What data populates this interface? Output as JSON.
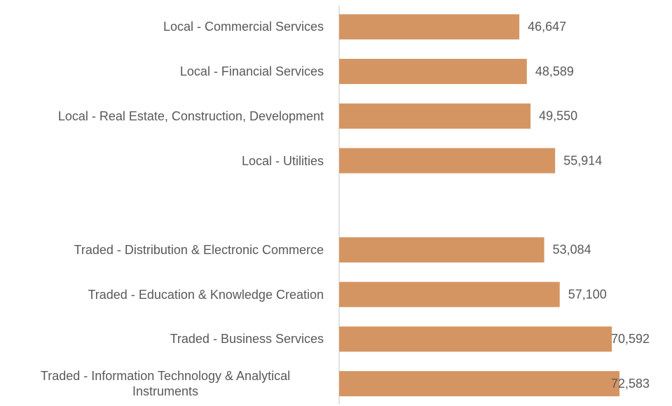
{
  "chart_data": {
    "type": "bar",
    "orientation": "horizontal",
    "categories": [
      "Local - Commercial Services",
      "Local - Financial Services",
      "Local - Real Estate, Construction, Development",
      "Local - Utilities",
      null,
      "Traded - Distribution & Electronic Commerce",
      "Traded - Education & Knowledge Creation",
      "Traded - Business Services",
      "Traded - Information Technology & Analytical Instruments"
    ],
    "values": [
      46647,
      48589,
      49550,
      55914,
      null,
      53084,
      57100,
      70592,
      72583
    ],
    "value_labels": [
      "46,647",
      "48,589",
      "49,550",
      "55,914",
      null,
      "53,084",
      "57,100",
      "70,592",
      "72,583"
    ],
    "color": "#d59563",
    "xlim": [
      0,
      80000
    ]
  }
}
